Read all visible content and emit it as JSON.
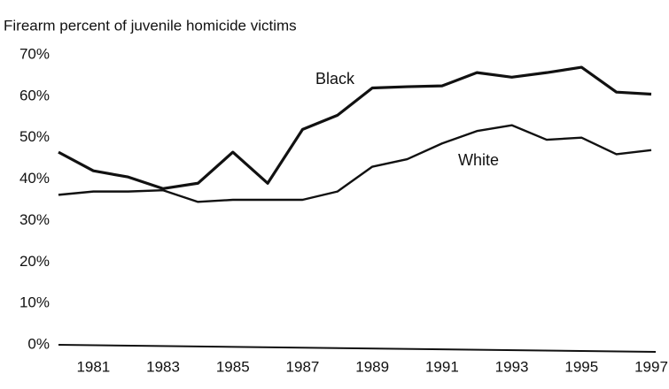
{
  "chart_data": {
    "type": "line",
    "title": "Firearm percent of juvenile homicide victims",
    "x": [
      1980,
      1981,
      1982,
      1983,
      1984,
      1985,
      1986,
      1987,
      1988,
      1989,
      1990,
      1991,
      1992,
      1993,
      1994,
      1995,
      1996,
      1997
    ],
    "series": [
      {
        "name": "Black",
        "color": "#111111",
        "values": [
          46.5,
          42,
          40.5,
          37.7,
          39,
          46.5,
          39,
          52,
          55.4,
          62,
          62.3,
          62.5,
          65.7,
          64.6,
          65.7,
          67,
          61,
          60.5
        ]
      },
      {
        "name": "White",
        "color": "#111111",
        "values": [
          36.2,
          37,
          37,
          37.3,
          34.5,
          35,
          35,
          35,
          37,
          43,
          44.8,
          48.6,
          51.6,
          53,
          49.5,
          50,
          46,
          47
        ]
      }
    ],
    "xlim": [
      1980,
      1997
    ],
    "xticks": [
      1981,
      1983,
      1985,
      1987,
      1989,
      1991,
      1993,
      1995,
      1997
    ],
    "ylim": [
      0,
      70
    ],
    "yticks": [
      {
        "value": 0,
        "label": "0%"
      },
      {
        "value": 10,
        "label": "10%"
      },
      {
        "value": 20,
        "label": "20%"
      },
      {
        "value": 30,
        "label": "30%"
      },
      {
        "value": 40,
        "label": "40%"
      },
      {
        "value": 50,
        "label": "50%"
      },
      {
        "value": 60,
        "label": "60%"
      },
      {
        "value": 70,
        "label": "70%"
      }
    ],
    "grid": false
  }
}
